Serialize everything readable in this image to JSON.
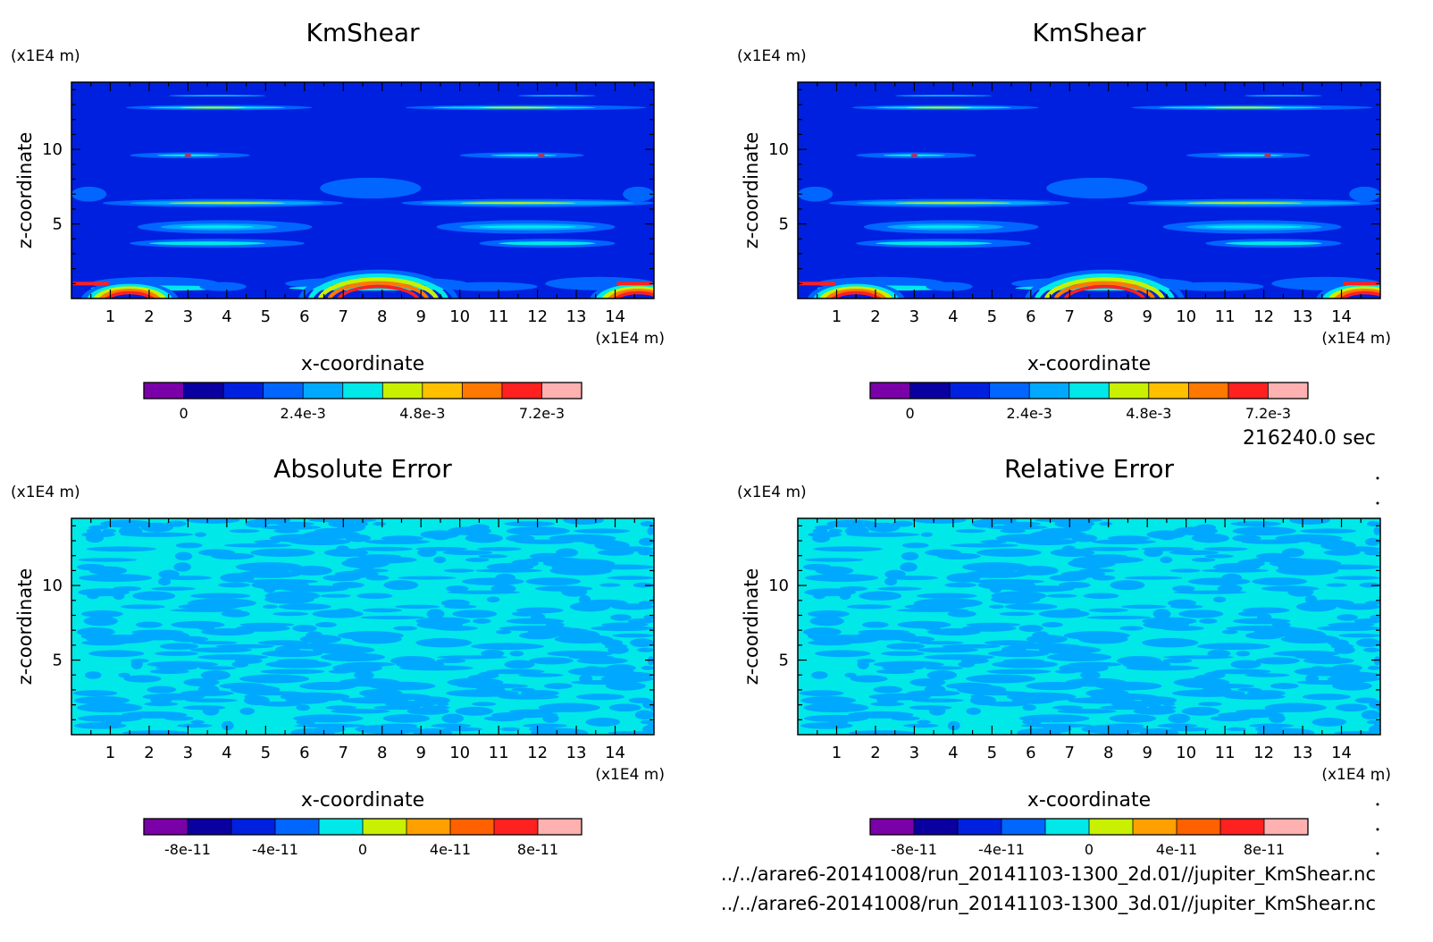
{
  "time_label": "216240.0 sec",
  "file_paths": [
    "../../arare6-20141008/run_20141103-1300_2d.01//jupiter_KmShear.nc",
    "../../arare6-20141008/run_20141103-1300_3d.01//jupiter_KmShear.nc"
  ],
  "colors": {
    "background": "#ffffff",
    "frame": "#000000",
    "palette": [
      "#7a00a8",
      "#0a00a0",
      "#0020e0",
      "#0066ff",
      "#00a8ff",
      "#00e8e8",
      "#c8f000",
      "#ffc000",
      "#ff7800",
      "#ff2020",
      "#ffb0b0"
    ]
  },
  "chart_data": [
    {
      "type": "heatmap",
      "title": "KmShear",
      "xlabel": "x-coordinate",
      "ylabel": "z-coordinate",
      "x_unit": "(x1E4 m)",
      "y_unit": "(x1E4 m)",
      "xlim": [
        0,
        15
      ],
      "ylim": [
        0,
        14.5
      ],
      "x_ticks": [
        "1",
        "2",
        "3",
        "4",
        "5",
        "6",
        "7",
        "8",
        "9",
        "10",
        "11",
        "12",
        "13",
        "14"
      ],
      "y_ticks": [
        "5",
        "10"
      ],
      "y_tick_values": [
        5,
        10
      ],
      "colorbar": {
        "colors": [
          "#7a00a8",
          "#0a00a0",
          "#0020e0",
          "#0066ff",
          "#00a8ff",
          "#00e8e8",
          "#c8f000",
          "#ffc000",
          "#ff7800",
          "#ff2020",
          "#ffb0b0"
        ],
        "tick_labels": [
          "0",
          "2.4e-3",
          "4.8e-3",
          "7.2e-3"
        ],
        "tick_positions": [
          1,
          4,
          7,
          10
        ]
      },
      "field": "kmshear"
    },
    {
      "type": "heatmap",
      "title": "KmShear",
      "xlabel": "x-coordinate",
      "ylabel": "z-coordinate",
      "x_unit": "(x1E4 m)",
      "y_unit": "(x1E4 m)",
      "xlim": [
        0,
        15
      ],
      "ylim": [
        0,
        14.5
      ],
      "x_ticks": [
        "1",
        "2",
        "3",
        "4",
        "5",
        "6",
        "7",
        "8",
        "9",
        "10",
        "11",
        "12",
        "13",
        "14"
      ],
      "y_ticks": [
        "5",
        "10"
      ],
      "y_tick_values": [
        5,
        10
      ],
      "colorbar": {
        "colors": [
          "#7a00a8",
          "#0a00a0",
          "#0020e0",
          "#0066ff",
          "#00a8ff",
          "#00e8e8",
          "#c8f000",
          "#ffc000",
          "#ff7800",
          "#ff2020",
          "#ffb0b0"
        ],
        "tick_labels": [
          "0",
          "2.4e-3",
          "4.8e-3",
          "7.2e-3"
        ],
        "tick_positions": [
          1,
          4,
          7,
          10
        ]
      },
      "field": "kmshear"
    },
    {
      "type": "heatmap",
      "title": "Absolute Error",
      "xlabel": "x-coordinate",
      "ylabel": "z-coordinate",
      "x_unit": "(x1E4 m)",
      "y_unit": "(x1E4 m)",
      "xlim": [
        0,
        15
      ],
      "ylim": [
        0,
        14.5
      ],
      "x_ticks": [
        "1",
        "2",
        "3",
        "4",
        "5",
        "6",
        "7",
        "8",
        "9",
        "10",
        "11",
        "12",
        "13",
        "14"
      ],
      "y_ticks": [
        "5",
        "10"
      ],
      "y_tick_values": [
        5,
        10
      ],
      "colorbar": {
        "colors": [
          "#7a00a8",
          "#0a00a0",
          "#0020e0",
          "#0066ff",
          "#00e8e8",
          "#c8f000",
          "#ffa000",
          "#ff6000",
          "#ff2020",
          "#ffb0b0"
        ],
        "tick_labels": [
          "-8e-11",
          "-4e-11",
          "0",
          "4e-11",
          "8e-11"
        ],
        "tick_positions": [
          1,
          3,
          5,
          7,
          9
        ]
      },
      "field": "error"
    },
    {
      "type": "heatmap",
      "title": "Relative Error",
      "xlabel": "x-coordinate",
      "ylabel": "z-coordinate",
      "x_unit": "(x1E4 m)",
      "y_unit": "(x1E4 m)",
      "xlim": [
        0,
        15
      ],
      "ylim": [
        0,
        14.5
      ],
      "x_ticks": [
        "1",
        "2",
        "3",
        "4",
        "5",
        "6",
        "7",
        "8",
        "9",
        "10",
        "11",
        "12",
        "13",
        "14"
      ],
      "y_ticks": [
        "5",
        "10"
      ],
      "y_tick_values": [
        5,
        10
      ],
      "colorbar": {
        "colors": [
          "#7a00a8",
          "#0a00a0",
          "#0020e0",
          "#0066ff",
          "#00e8e8",
          "#c8f000",
          "#ffa000",
          "#ff6000",
          "#ff2020",
          "#ffb0b0"
        ],
        "tick_labels": [
          "-8e-11",
          "-4e-11",
          "0",
          "4e-11",
          "8e-11"
        ],
        "tick_positions": [
          1,
          3,
          5,
          7,
          9
        ]
      },
      "field": "error"
    }
  ]
}
